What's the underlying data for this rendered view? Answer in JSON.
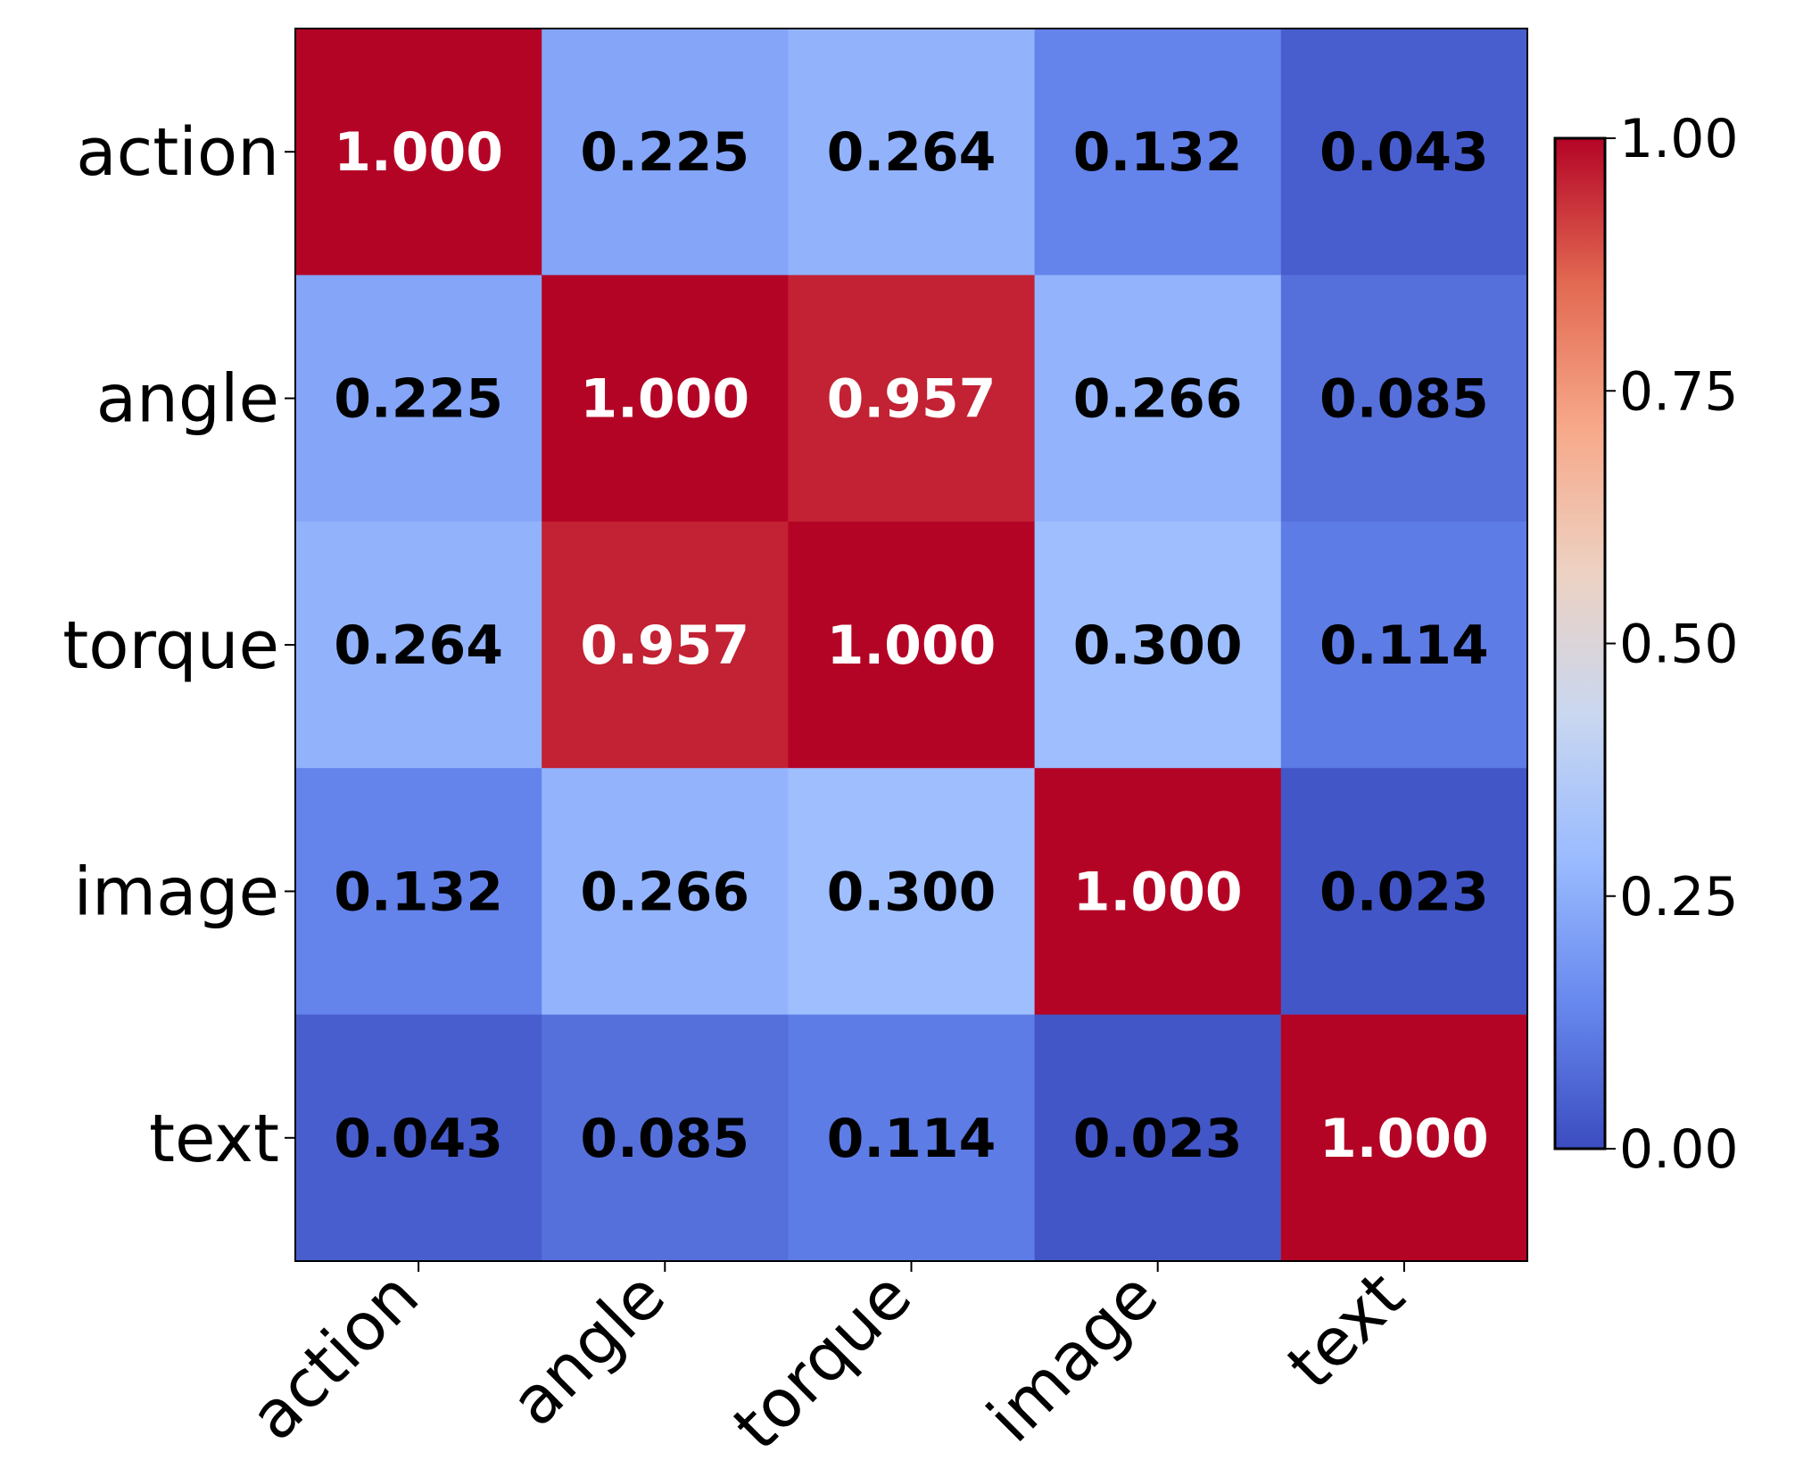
{
  "chart_data": {
    "type": "heatmap",
    "title": "",
    "xlabel": "",
    "ylabel": "",
    "x_categories": [
      "action",
      "angle",
      "torque",
      "image",
      "text"
    ],
    "y_categories": [
      "action",
      "angle",
      "torque",
      "image",
      "text"
    ],
    "values": [
      [
        1.0,
        0.225,
        0.264,
        0.132,
        0.043
      ],
      [
        0.225,
        1.0,
        0.957,
        0.266,
        0.085
      ],
      [
        0.264,
        0.957,
        1.0,
        0.3,
        0.114
      ],
      [
        0.132,
        0.266,
        0.3,
        1.0,
        0.023
      ],
      [
        0.043,
        0.085,
        0.114,
        0.023,
        1.0
      ]
    ],
    "value_format": "0.000",
    "colormap": "coolwarm",
    "vmin": 0.0,
    "vmax": 1.0,
    "colorbar_ticks": [
      0.0,
      0.25,
      0.5,
      0.75,
      1.0
    ],
    "colorbar_tick_labels": [
      "0.00",
      "0.25",
      "0.50",
      "0.75",
      "1.00"
    ],
    "grid": false,
    "colors": {
      "dark_text": "#000000",
      "light_text": "#ffffff",
      "colormap_stops": [
        "#3b4cc0",
        "#6788ee",
        "#9abbff",
        "#c9d7f0",
        "#edd1c2",
        "#f7a889",
        "#e26952",
        "#b40426"
      ]
    }
  }
}
